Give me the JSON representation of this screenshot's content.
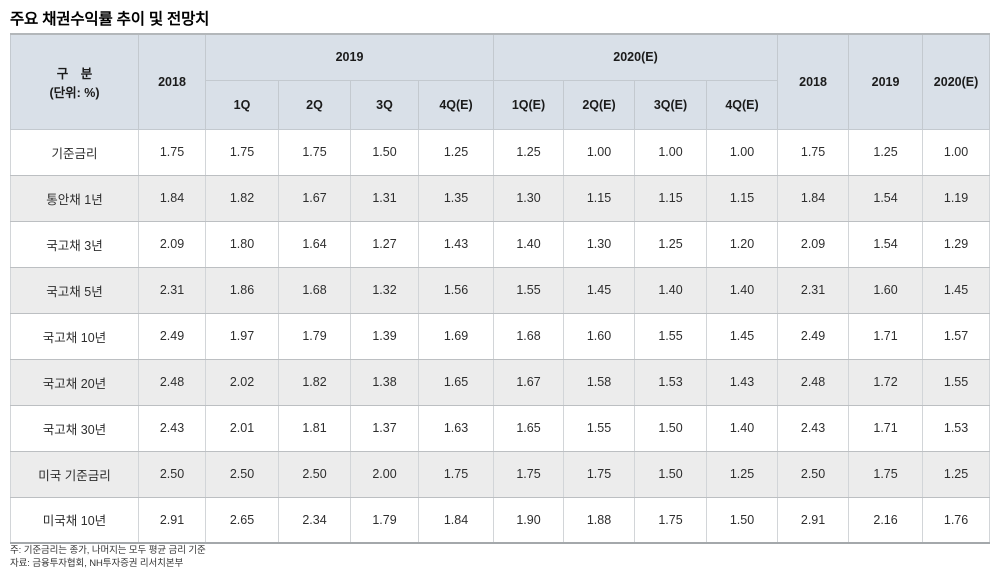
{
  "page": {
    "title": "주요 채권수익률 추이 및 전망치"
  },
  "table": {
    "header": {
      "col_label": "구　분",
      "col_label_unit": "(단위: %)",
      "col_2018": "2018",
      "group_2019": "2019",
      "group_2020": "2020(E)",
      "q_2019": [
        "1Q",
        "2Q",
        "3Q",
        "4Q(E)"
      ],
      "q_2020": [
        "1Q(E)",
        "2Q(E)",
        "3Q(E)",
        "4Q(E)"
      ],
      "annual": [
        "2018",
        "2019",
        "2020(E)"
      ]
    },
    "rows": [
      {
        "label": "기준금리",
        "values": [
          "1.75",
          "1.75",
          "1.75",
          "1.50",
          "1.25",
          "1.25",
          "1.00",
          "1.00",
          "1.00",
          "1.75",
          "1.25",
          "1.00"
        ]
      },
      {
        "label": "통안채 1년",
        "values": [
          "1.84",
          "1.82",
          "1.67",
          "1.31",
          "1.35",
          "1.30",
          "1.15",
          "1.15",
          "1.15",
          "1.84",
          "1.54",
          "1.19"
        ]
      },
      {
        "label": "국고채 3년",
        "values": [
          "2.09",
          "1.80",
          "1.64",
          "1.27",
          "1.43",
          "1.40",
          "1.30",
          "1.25",
          "1.20",
          "2.09",
          "1.54",
          "1.29"
        ]
      },
      {
        "label": "국고채 5년",
        "values": [
          "2.31",
          "1.86",
          "1.68",
          "1.32",
          "1.56",
          "1.55",
          "1.45",
          "1.40",
          "1.40",
          "2.31",
          "1.60",
          "1.45"
        ]
      },
      {
        "label": "국고채 10년",
        "values": [
          "2.49",
          "1.97",
          "1.79",
          "1.39",
          "1.69",
          "1.68",
          "1.60",
          "1.55",
          "1.45",
          "2.49",
          "1.71",
          "1.57"
        ]
      },
      {
        "label": "국고채 20년",
        "values": [
          "2.48",
          "2.02",
          "1.82",
          "1.38",
          "1.65",
          "1.67",
          "1.58",
          "1.53",
          "1.43",
          "2.48",
          "1.72",
          "1.55"
        ]
      },
      {
        "label": "국고채 30년",
        "values": [
          "2.43",
          "2.01",
          "1.81",
          "1.37",
          "1.63",
          "1.65",
          "1.55",
          "1.50",
          "1.40",
          "2.43",
          "1.71",
          "1.53"
        ]
      },
      {
        "label": "미국 기준금리",
        "values": [
          "2.50",
          "2.50",
          "2.50",
          "2.00",
          "1.75",
          "1.75",
          "1.75",
          "1.50",
          "1.25",
          "2.50",
          "1.75",
          "1.25"
        ]
      },
      {
        "label": "미국채 10년",
        "values": [
          "2.91",
          "2.65",
          "2.34",
          "1.79",
          "1.84",
          "1.90",
          "1.88",
          "1.75",
          "1.50",
          "2.91",
          "2.16",
          "1.76"
        ]
      }
    ]
  },
  "footer": {
    "note": "주: 기준금리는 종가, 나머지는 모두 평균 금리 기준",
    "source": "자료: 금융투자협회, NH투자증권 리서치본부"
  },
  "colors": {
    "header_bg": "#d9e0e8",
    "stripe_bg": "#ececec",
    "border": "#bcbfc2",
    "text": "#2e2e2e"
  }
}
